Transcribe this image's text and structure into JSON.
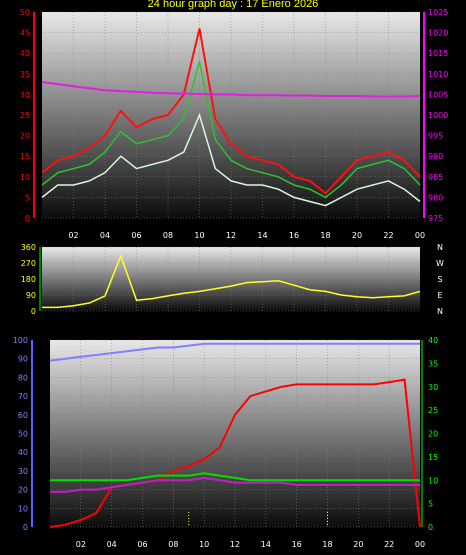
{
  "title": "24 hour graph day : 17 Enero 2026",
  "x_ticks": [
    "02",
    "04",
    "06",
    "08",
    "10",
    "12",
    "14",
    "16",
    "18",
    "20",
    "22",
    "00"
  ],
  "compass_letters": [
    "N",
    "W",
    "S",
    "E",
    "N"
  ],
  "colors": {
    "background": "#000000",
    "plot_top": "#e8e8e8",
    "plot_bottom": "#101010",
    "wind_gust": "#ff1010",
    "wind_avg": "#30c030",
    "wind_speed": "#d8f8d8",
    "pressure": "#e020e0",
    "direction": "#ffff20",
    "rain": "#ff0000",
    "humidity": "#8080ff",
    "temp": "#00e000",
    "dewpoint": "#c020c0",
    "axis_left": "#ff0000",
    "axis_right": "#ff00ff",
    "axis_blue": "#6060ff",
    "axis_green": "#00ff00"
  },
  "chart_data": [
    {
      "type": "line",
      "title": "",
      "xlabel": "",
      "x_hours": [
        0,
        1,
        2,
        3,
        4,
        5,
        6,
        7,
        8,
        9,
        10,
        11,
        12,
        13,
        14,
        15,
        16,
        17,
        18,
        19,
        20,
        21,
        22,
        23,
        24
      ],
      "yleft": {
        "ticks": [
          "0",
          "5",
          "10",
          "15",
          "20",
          "25",
          "30",
          "35",
          "40",
          "45",
          "50"
        ],
        "range": [
          0,
          50
        ]
      },
      "yright": {
        "ticks": [
          "975",
          "980",
          "985",
          "990",
          "995",
          "1000",
          "1005",
          "1010",
          "1015",
          "1020",
          "1025"
        ],
        "range": [
          975,
          1025
        ]
      },
      "series": [
        {
          "key": "gust",
          "axis": "left",
          "values": [
            11,
            14,
            15,
            17,
            20,
            26,
            22,
            24,
            25,
            30,
            46,
            24,
            18,
            15,
            14,
            13,
            10,
            9,
            6,
            10,
            14,
            15,
            16,
            14,
            10
          ]
        },
        {
          "key": "avg",
          "axis": "left",
          "values": [
            8,
            11,
            12,
            13,
            16,
            21,
            18,
            19,
            20,
            24,
            38,
            19,
            14,
            12,
            11,
            10,
            8,
            7,
            5,
            8,
            12,
            13,
            14,
            12,
            8
          ]
        },
        {
          "key": "speed",
          "axis": "left",
          "values": [
            5,
            8,
            8,
            9,
            11,
            15,
            12,
            13,
            14,
            16,
            25,
            12,
            9,
            8,
            8,
            7,
            5,
            4,
            3,
            5,
            7,
            8,
            9,
            7,
            4
          ]
        },
        {
          "key": "pressure",
          "axis": "right",
          "values": [
            1008,
            1007.5,
            1007,
            1006.5,
            1006,
            1005.8,
            1005.6,
            1005.4,
            1005.3,
            1005.2,
            1005.1,
            1005,
            1005,
            1004.8,
            1004.8,
            1004.8,
            1004.7,
            1004.7,
            1004.6,
            1004.6,
            1004.6,
            1004.5,
            1004.5,
            1004.5,
            1004.6
          ]
        }
      ]
    },
    {
      "type": "line",
      "title": "",
      "yticks": [
        "0",
        "90",
        "180",
        "270",
        "360"
      ],
      "yrange": [
        0,
        360
      ],
      "series": [
        {
          "key": "direction",
          "values": [
            20,
            20,
            30,
            45,
            85,
            310,
            60,
            70,
            85,
            100,
            110,
            125,
            140,
            160,
            165,
            170,
            145,
            120,
            110,
            90,
            80,
            75,
            80,
            85,
            110
          ]
        }
      ]
    },
    {
      "type": "line",
      "title": "",
      "yleft": {
        "ticks": [
          "0",
          "10",
          "20",
          "30",
          "40",
          "50",
          "60",
          "70",
          "80",
          "90",
          "100"
        ],
        "range": [
          0,
          100
        ]
      },
      "yright": {
        "ticks": [
          "0",
          "5",
          "10",
          "15",
          "20",
          "25",
          "30",
          "35",
          "40"
        ],
        "range": [
          0,
          40
        ]
      },
      "series": [
        {
          "key": "humidity",
          "axis": "left",
          "values": [
            89,
            90,
            91,
            92,
            93,
            94,
            95,
            96,
            96,
            97,
            98,
            98,
            98,
            98,
            98,
            98,
            98,
            98,
            98,
            98,
            98,
            98,
            98,
            98,
            98
          ]
        },
        {
          "key": "rain",
          "axis": "right",
          "values": [
            0,
            0.5,
            1.5,
            3,
            8.5,
            9,
            9.5,
            10,
            12,
            13,
            14.5,
            17,
            24,
            28,
            29,
            30,
            30.5,
            30.5,
            30.5,
            30.5,
            30.5,
            30.5,
            31,
            31.5,
            0
          ]
        },
        {
          "key": "temp",
          "axis": "right",
          "values": [
            10,
            10,
            10,
            10,
            10,
            10,
            10.5,
            11,
            11,
            11,
            11.5,
            11,
            10.5,
            10,
            10,
            10,
            10,
            10,
            10,
            10,
            10,
            10,
            10,
            10,
            10
          ]
        },
        {
          "key": "dewpoint",
          "axis": "right",
          "values": [
            7.5,
            7.5,
            8,
            8,
            8.5,
            9,
            9.5,
            10,
            10,
            10,
            10.5,
            10,
            9.5,
            9.5,
            9.5,
            9.5,
            9,
            9,
            9,
            9,
            9,
            9,
            9,
            9,
            9
          ]
        }
      ]
    }
  ]
}
